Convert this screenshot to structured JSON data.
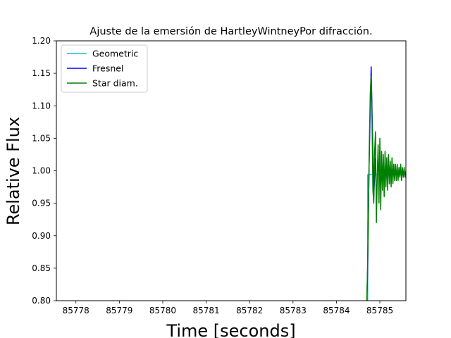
{
  "chart_data": {
    "type": "line",
    "title": "Ajuste de la emersión de HartleyWintneyPor difracción.",
    "xlabel": "Time [seconds]",
    "ylabel": "Relative Flux",
    "xlim": [
      85777.55,
      85785.6
    ],
    "ylim": [
      0.8,
      1.2
    ],
    "xticks": [
      85778,
      85779,
      85780,
      85781,
      85782,
      85783,
      85784,
      85785
    ],
    "xtick_labels": [
      "85778",
      "85779",
      "85780",
      "85781",
      "85782",
      "85783",
      "85784",
      "85785"
    ],
    "yticks": [
      0.8,
      0.85,
      0.9,
      0.95,
      1.0,
      1.05,
      1.1,
      1.15,
      1.2
    ],
    "ytick_labels": [
      "0.80",
      "0.85",
      "0.90",
      "0.95",
      "1.00",
      "1.05",
      "1.10",
      "1.15",
      "1.20"
    ],
    "grid": false,
    "legend_position": "top-left",
    "series": [
      {
        "name": "Geometric",
        "color": "#17becf",
        "x": [
          85784.7,
          85784.72,
          85784.72,
          85784.8,
          85784.8,
          85785.6
        ],
        "y": [
          0.8,
          0.8,
          0.994,
          0.994,
          0.994,
          0.994
        ]
      },
      {
        "name": "Fresnel",
        "color": "#0000ff",
        "x": [
          85784.7,
          85784.72,
          85784.75,
          85784.78,
          85784.8,
          85784.83,
          85784.86,
          85784.9
        ],
        "y": [
          0.8,
          0.85,
          1.0,
          1.1,
          1.16,
          1.06,
          0.96,
          1.02
        ]
      },
      {
        "name": "Star diam.",
        "color": "#008000",
        "x": [
          85784.7,
          85784.72,
          85784.74,
          85784.76,
          85784.78,
          85784.8,
          85784.82,
          85784.84,
          85784.86,
          85784.88,
          85784.9,
          85784.92,
          85784.94,
          85784.96,
          85784.98,
          85785.0,
          85785.02,
          85785.04,
          85785.06,
          85785.08,
          85785.1,
          85785.12,
          85785.14,
          85785.16,
          85785.18,
          85785.2,
          85785.22,
          85785.24,
          85785.26,
          85785.28,
          85785.3,
          85785.32,
          85785.34,
          85785.36,
          85785.38,
          85785.4,
          85785.42,
          85785.44,
          85785.46,
          85785.48,
          85785.5,
          85785.52,
          85785.54,
          85785.56,
          85785.58,
          85785.6
        ],
        "y": [
          0.8,
          0.86,
          0.95,
          1.05,
          1.12,
          1.145,
          1.08,
          0.97,
          0.95,
          1.03,
          1.06,
          0.92,
          0.99,
          1.04,
          0.95,
          1.05,
          0.94,
          1.03,
          0.97,
          1.025,
          0.96,
          1.03,
          0.975,
          1.02,
          0.97,
          1.025,
          0.98,
          1.015,
          0.975,
          1.02,
          0.98,
          1.01,
          0.985,
          1.01,
          0.985,
          1.01,
          0.985,
          1.005,
          0.99,
          1.01,
          0.985,
          1.005,
          0.99,
          1.005,
          0.99,
          1.0
        ]
      }
    ]
  }
}
